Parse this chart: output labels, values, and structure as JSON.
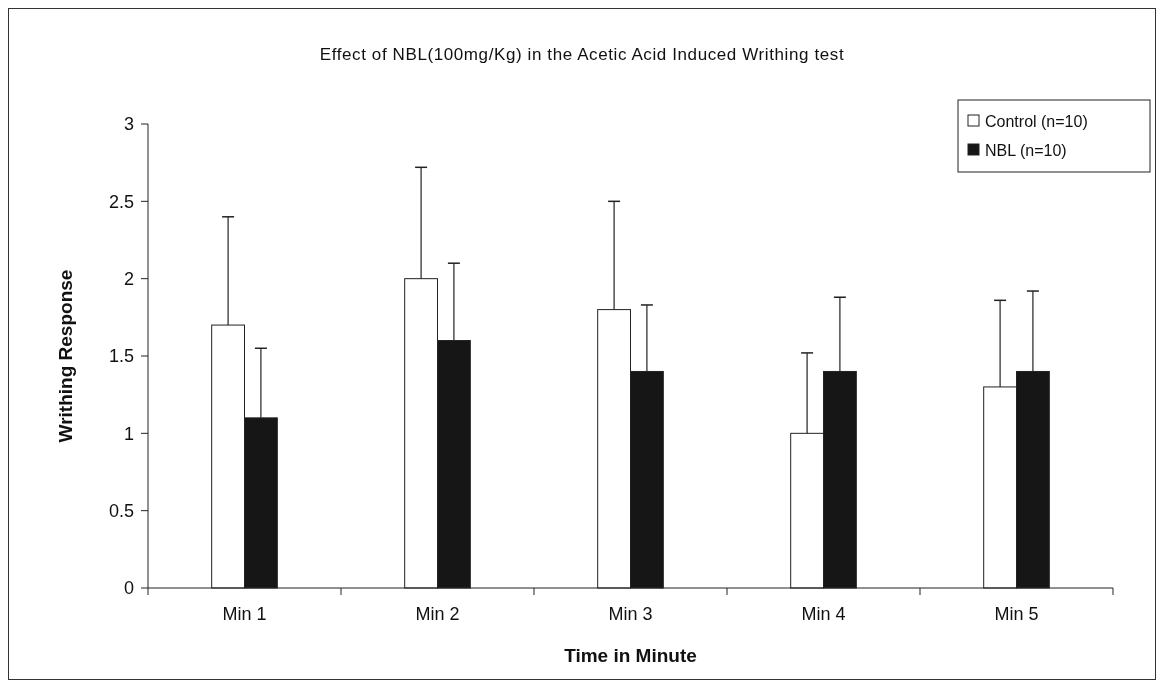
{
  "chart_data": {
    "type": "bar",
    "title": "Effect of NBL(100mg/Kg) in the Acetic Acid Induced Writhing test",
    "xlabel": "Time in Minute",
    "ylabel": "Writhing Response",
    "categories": [
      "Min 1",
      "Min 2",
      "Min 3",
      "Min 4",
      "Min 5"
    ],
    "series": [
      {
        "name": "Control (n=10)",
        "color": "#ffffff",
        "values": [
          1.7,
          2.0,
          1.8,
          1.0,
          1.3
        ],
        "errors": [
          [
            1.7,
            2.4
          ],
          [
            2.0,
            2.72
          ],
          [
            1.8,
            2.5
          ],
          [
            1.0,
            1.52
          ],
          [
            1.3,
            1.86
          ]
        ]
      },
      {
        "name": "NBL (n=10)",
        "color": "#161616",
        "values": [
          1.1,
          1.6,
          1.4,
          1.4,
          1.4
        ],
        "errors": [
          [
            1.1,
            1.55
          ],
          [
            1.6,
            2.1
          ],
          [
            1.4,
            1.83
          ],
          [
            1.4,
            1.88
          ],
          [
            1.4,
            1.92
          ]
        ]
      }
    ],
    "ylim": [
      0,
      3
    ],
    "yticks": [
      0,
      0.5,
      1,
      1.5,
      2,
      2.5,
      3
    ],
    "grid": false,
    "legend": "top right"
  }
}
